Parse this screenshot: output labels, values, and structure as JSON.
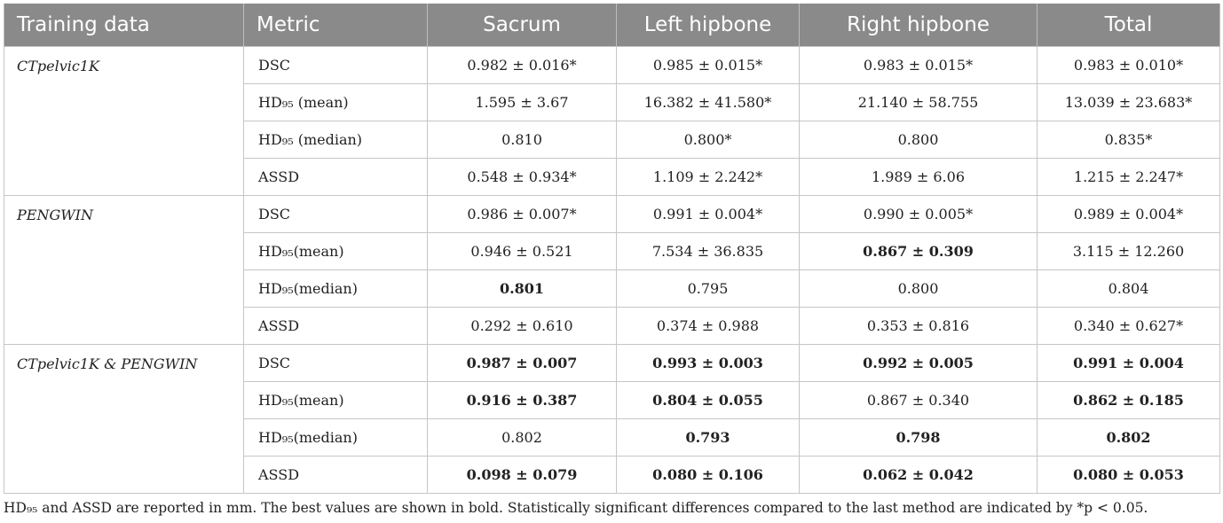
{
  "table": {
    "headers": [
      "Training data",
      "Metric",
      "Sacrum",
      "Left hipbone",
      "Right hipbone",
      "Total"
    ],
    "groups": [
      {
        "name": "CTpelvic1K",
        "rows": [
          {
            "metric": "DSC",
            "values": [
              "0.982 ± 0.016*",
              "0.985 ± 0.015*",
              "0.983 ± 0.015*",
              "0.983 ± 0.010*"
            ],
            "bold": [
              false,
              false,
              false,
              false
            ]
          },
          {
            "metric": "HD₉₅ (mean)",
            "values": [
              "1.595 ± 3.67",
              "16.382 ± 41.580*",
              "21.140 ± 58.755",
              "13.039 ± 23.683*"
            ],
            "bold": [
              false,
              false,
              false,
              false
            ]
          },
          {
            "metric": "HD₉₅ (median)",
            "values": [
              "0.810",
              "0.800*",
              "0.800",
              "0.835*"
            ],
            "bold": [
              false,
              false,
              false,
              false
            ]
          },
          {
            "metric": "ASSD",
            "values": [
              "0.548 ± 0.934*",
              "1.109 ± 2.242*",
              "1.989 ± 6.06",
              "1.215 ± 2.247*"
            ],
            "bold": [
              false,
              false,
              false,
              false
            ]
          }
        ]
      },
      {
        "name": "PENGWIN",
        "rows": [
          {
            "metric": "DSC",
            "values": [
              "0.986 ± 0.007*",
              "0.991 ± 0.004*",
              "0.990 ± 0.005*",
              "0.989 ± 0.004*"
            ],
            "bold": [
              false,
              false,
              false,
              false
            ]
          },
          {
            "metric": "HD₉₅(mean)",
            "values": [
              "0.946 ± 0.521",
              "7.534 ± 36.835",
              "0.867 ± 0.309",
              "3.115 ± 12.260"
            ],
            "bold": [
              false,
              false,
              true,
              false
            ]
          },
          {
            "metric": "HD₉₅(median)",
            "values": [
              "0.801",
              "0.795",
              "0.800",
              "0.804"
            ],
            "bold": [
              true,
              false,
              false,
              false
            ]
          },
          {
            "metric": "ASSD",
            "values": [
              "0.292 ± 0.610",
              "0.374 ± 0.988",
              "0.353 ± 0.816",
              "0.340 ± 0.627*"
            ],
            "bold": [
              false,
              false,
              false,
              false
            ]
          }
        ]
      },
      {
        "name": "CTpelvic1K & PENGWIN",
        "rows": [
          {
            "metric": "DSC",
            "values": [
              "0.987 ± 0.007",
              "0.993 ± 0.003",
              "0.992 ± 0.005",
              "0.991 ± 0.004"
            ],
            "bold": [
              true,
              true,
              true,
              true
            ]
          },
          {
            "metric": "HD₉₅(mean)",
            "values": [
              "0.916 ± 0.387",
              "0.804 ± 0.055",
              "0.867 ± 0.340",
              "0.862 ± 0.185"
            ],
            "bold": [
              true,
              true,
              false,
              true
            ]
          },
          {
            "metric": "HD₉₅(median)",
            "values": [
              "0.802",
              "0.793",
              "0.798",
              "0.802"
            ],
            "bold": [
              false,
              true,
              true,
              true
            ]
          },
          {
            "metric": "ASSD",
            "values": [
              "0.098 ± 0.079",
              "0.080 ± 0.106",
              "0.062 ± 0.042",
              "0.080 ± 0.053"
            ],
            "bold": [
              true,
              true,
              true,
              true
            ]
          }
        ]
      }
    ]
  },
  "footnote": "HD₉₅ and ASSD are reported in mm. The best values are shown in bold. Statistically significant differences compared to the last method are indicated by *p < 0.05.",
  "colors": {
    "header_bg": "#8a8a8a",
    "header_text": "#ffffff",
    "grid": "#c6c6c6",
    "text": "#222222"
  }
}
